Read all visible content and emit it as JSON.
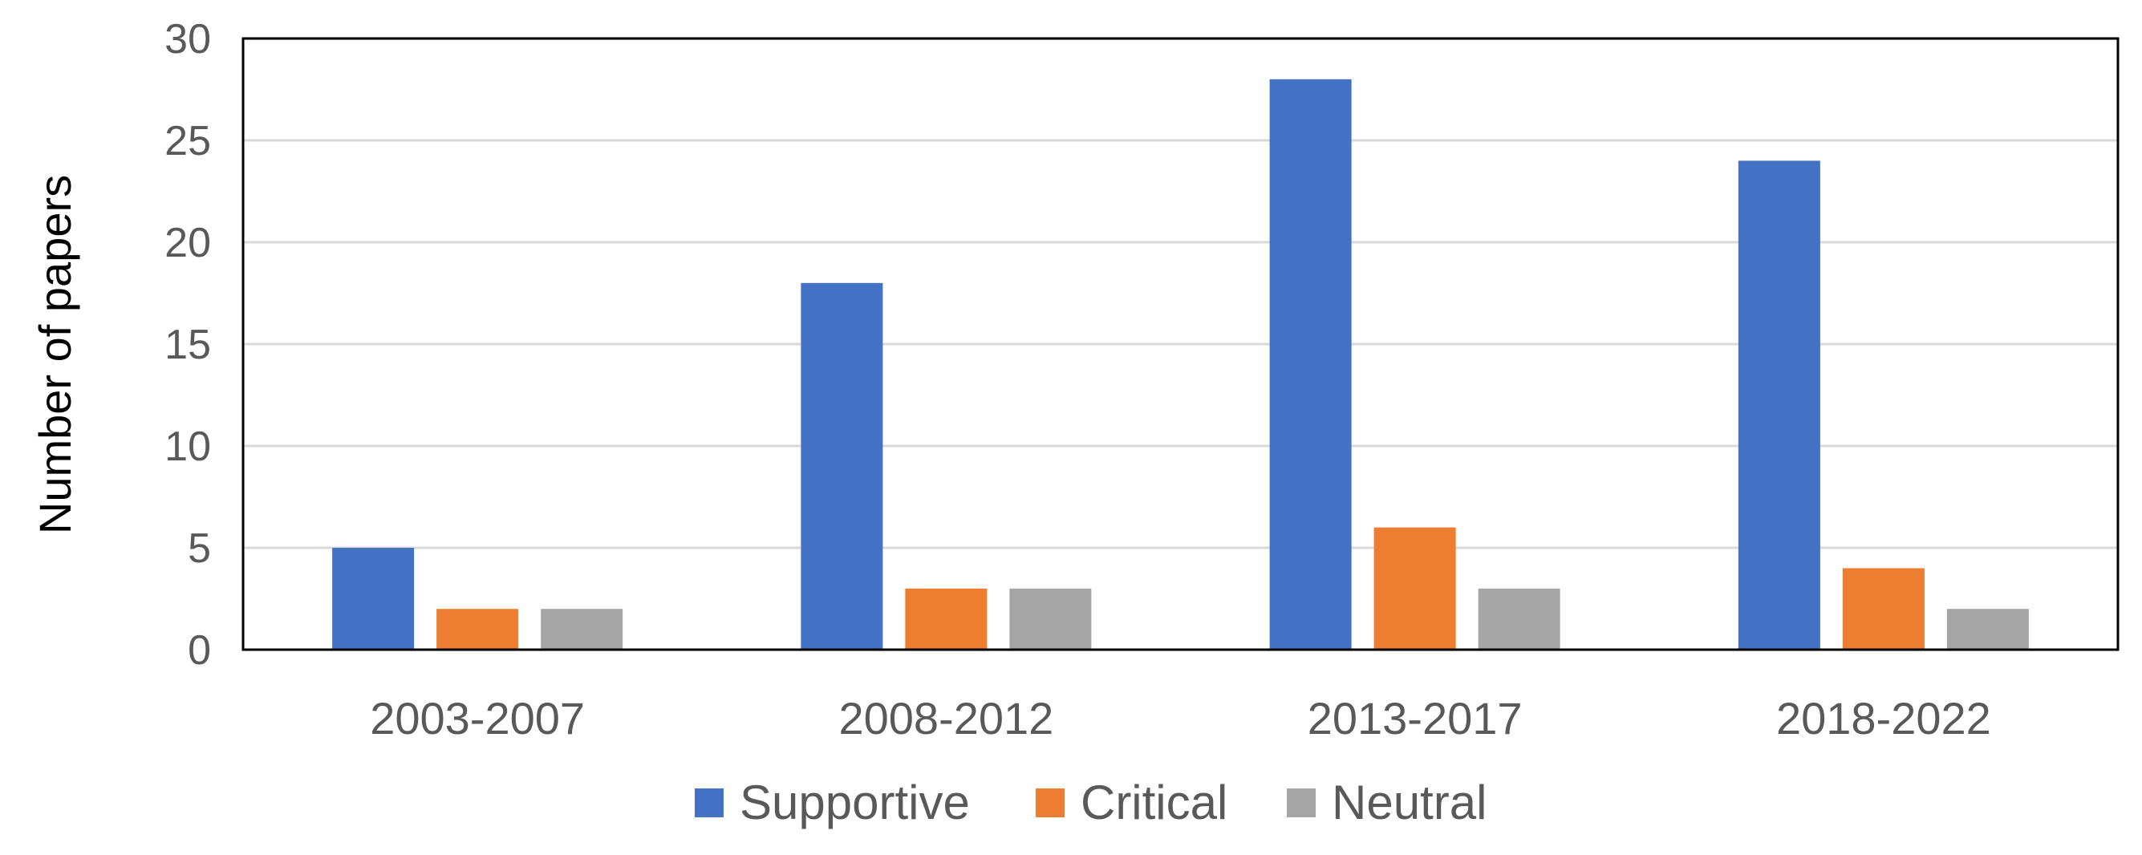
{
  "chart_data": {
    "type": "bar",
    "title": "",
    "xlabel": "",
    "ylabel": "Number of papers",
    "ylim": [
      0,
      30
    ],
    "yticks": [
      0,
      5,
      10,
      15,
      20,
      25,
      30
    ],
    "grid": true,
    "legend_position": "bottom",
    "categories": [
      "2003-2007",
      "2008-2012",
      "2013-2017",
      "2018-2022"
    ],
    "series": [
      {
        "name": "Supportive",
        "color": "#4472C4",
        "values": [
          5,
          18,
          28,
          24
        ]
      },
      {
        "name": "Critical",
        "color": "#ED7D31",
        "values": [
          2,
          3,
          6,
          4
        ]
      },
      {
        "name": "Neutral",
        "color": "#A5A5A5",
        "values": [
          2,
          3,
          3,
          2
        ]
      }
    ]
  }
}
